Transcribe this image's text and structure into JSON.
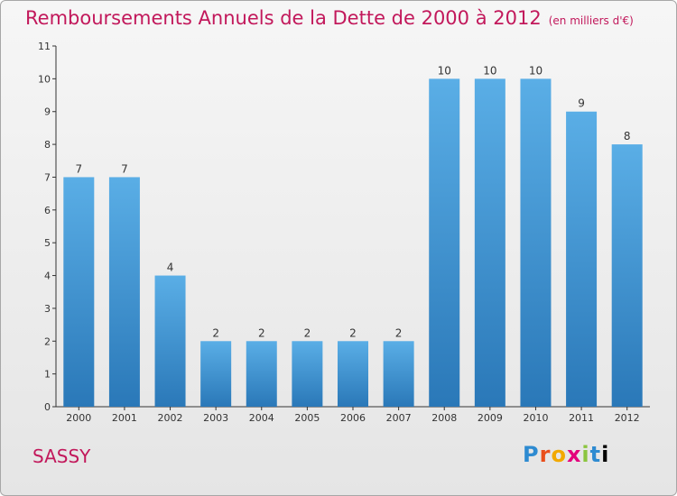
{
  "title": "Remboursements Annuels de la Dette de 2000 à 2012",
  "unit_note": "(en milliers d'€)",
  "commune": "SASSY",
  "logo_text": "Proxiti",
  "colors": {
    "title": "#c2185b",
    "bar_top": "#5aaee6",
    "bar_bottom": "#2a78b8",
    "axis": "#333333"
  },
  "chart_data": {
    "type": "bar",
    "title": "Remboursements Annuels de la Dette de 2000 à 2012",
    "categories": [
      "2000",
      "2001",
      "2002",
      "2003",
      "2004",
      "2005",
      "2006",
      "2007",
      "2008",
      "2009",
      "2010",
      "2011",
      "2012"
    ],
    "values": [
      7,
      7,
      4,
      2,
      2,
      2,
      2,
      2,
      10,
      10,
      10,
      9,
      8
    ],
    "ylim": [
      0,
      11
    ],
    "yticks": [
      0,
      1,
      2,
      3,
      4,
      5,
      6,
      7,
      8,
      9,
      10,
      11
    ],
    "grid": false,
    "data_labels": true
  }
}
